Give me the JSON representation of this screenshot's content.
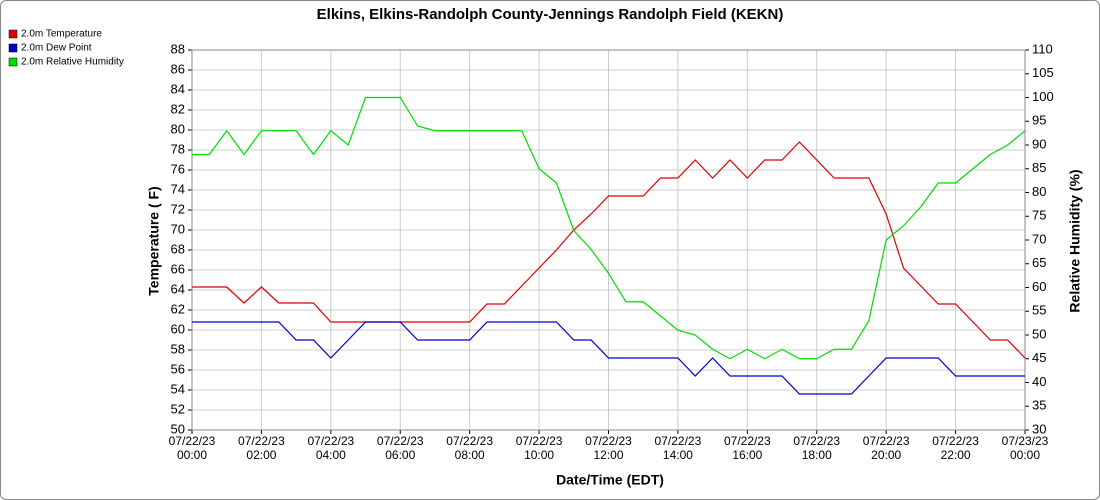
{
  "chart_data": {
    "type": "line",
    "title": "Elkins, Elkins-Randolph County-Jennings Randolph Field (KEKN)",
    "x_label": "Date/Time (EDT)",
    "y_label": "Temperature ( F)",
    "y2_label": "Relative Humidity (%)",
    "x": [
      0,
      0.5,
      1,
      1.5,
      2,
      2.5,
      3,
      3.5,
      4,
      4.5,
      5,
      5.5,
      6,
      6.5,
      7,
      7.5,
      8,
      8.5,
      9,
      9.5,
      10,
      10.5,
      11,
      11.5,
      12,
      12.5,
      13,
      13.5,
      14,
      14.5,
      15,
      15.5,
      16,
      16.5,
      17,
      17.5,
      18,
      18.5,
      19,
      19.5,
      20,
      20.5,
      21,
      21.5,
      22,
      22.5,
      23,
      23.5,
      24
    ],
    "xlim": [
      0,
      24
    ],
    "xticks": [
      {
        "value": 0,
        "label": "07/22/23\n00:00"
      },
      {
        "value": 2,
        "label": "07/22/23\n02:00"
      },
      {
        "value": 4,
        "label": "07/22/23\n04:00"
      },
      {
        "value": 6,
        "label": "07/22/23\n06:00"
      },
      {
        "value": 8,
        "label": "07/22/23\n08:00"
      },
      {
        "value": 10,
        "label": "07/22/23\n10:00"
      },
      {
        "value": 12,
        "label": "07/22/23\n12:00"
      },
      {
        "value": 14,
        "label": "07/22/23\n14:00"
      },
      {
        "value": 16,
        "label": "07/22/23\n16:00"
      },
      {
        "value": 18,
        "label": "07/22/23\n18:00"
      },
      {
        "value": 20,
        "label": "07/22/23\n20:00"
      },
      {
        "value": 22,
        "label": "07/22/23\n22:00"
      },
      {
        "value": 24,
        "label": "07/23/23\n00:00"
      }
    ],
    "ylim": [
      50,
      88
    ],
    "yticks": [
      50,
      52,
      54,
      56,
      58,
      60,
      62,
      64,
      66,
      68,
      70,
      72,
      74,
      76,
      78,
      80,
      82,
      84,
      86,
      88
    ],
    "y2lim": [
      30,
      110
    ],
    "y2ticks": [
      30,
      35,
      40,
      45,
      50,
      55,
      60,
      65,
      70,
      75,
      80,
      85,
      90,
      95,
      100,
      105,
      110
    ],
    "grid": true,
    "legend": "top-left",
    "series": [
      {
        "name": "2.0m Temperature",
        "color": "#dd0000",
        "values": [
          64.3,
          64.3,
          64.3,
          62.7,
          64.3,
          62.7,
          62.7,
          62.7,
          60.8,
          60.8,
          60.8,
          60.8,
          60.8,
          60.8,
          60.8,
          60.8,
          60.8,
          62.6,
          62.6,
          64.4,
          66.2,
          68,
          70,
          71.6,
          73.4,
          73.4,
          73.4,
          75.2,
          75.2,
          77,
          75.2,
          77,
          75.2,
          77,
          77,
          78.8,
          77,
          75.2,
          75.2,
          75.2,
          71.6,
          66.2,
          64.4,
          62.6,
          62.6,
          60.8,
          59,
          59,
          57.2
        ]
      },
      {
        "name": "2.0m Dew Point",
        "color": "#0000cc",
        "values": [
          60.8,
          60.8,
          60.8,
          60.8,
          60.8,
          60.8,
          59,
          59,
          57.2,
          59,
          60.8,
          60.8,
          60.8,
          59,
          59,
          59,
          59,
          60.8,
          60.8,
          60.8,
          60.8,
          60.8,
          59,
          59,
          57.2,
          57.2,
          57.2,
          57.2,
          57.2,
          55.4,
          57.2,
          55.4,
          55.4,
          55.4,
          55.4,
          53.6,
          53.6,
          53.6,
          53.6,
          55.4,
          57.2,
          57.2,
          57.2,
          57.2,
          55.4,
          55.4,
          55.4,
          55.4,
          55.4
        ]
      },
      {
        "name": "2.0m Relative Humidity",
        "color": "#00dd00",
        "axis": "y2",
        "values": [
          88,
          88,
          93,
          88,
          93,
          93,
          93,
          88,
          93,
          90,
          100,
          100,
          100,
          94,
          93,
          93,
          93,
          93,
          93,
          93,
          85,
          82,
          72,
          68,
          63,
          57,
          57,
          54,
          51,
          50,
          47,
          45,
          47,
          45,
          47,
          45,
          45,
          47,
          47,
          53,
          70,
          73,
          77,
          82,
          82,
          85,
          88,
          90,
          93
        ]
      }
    ]
  }
}
